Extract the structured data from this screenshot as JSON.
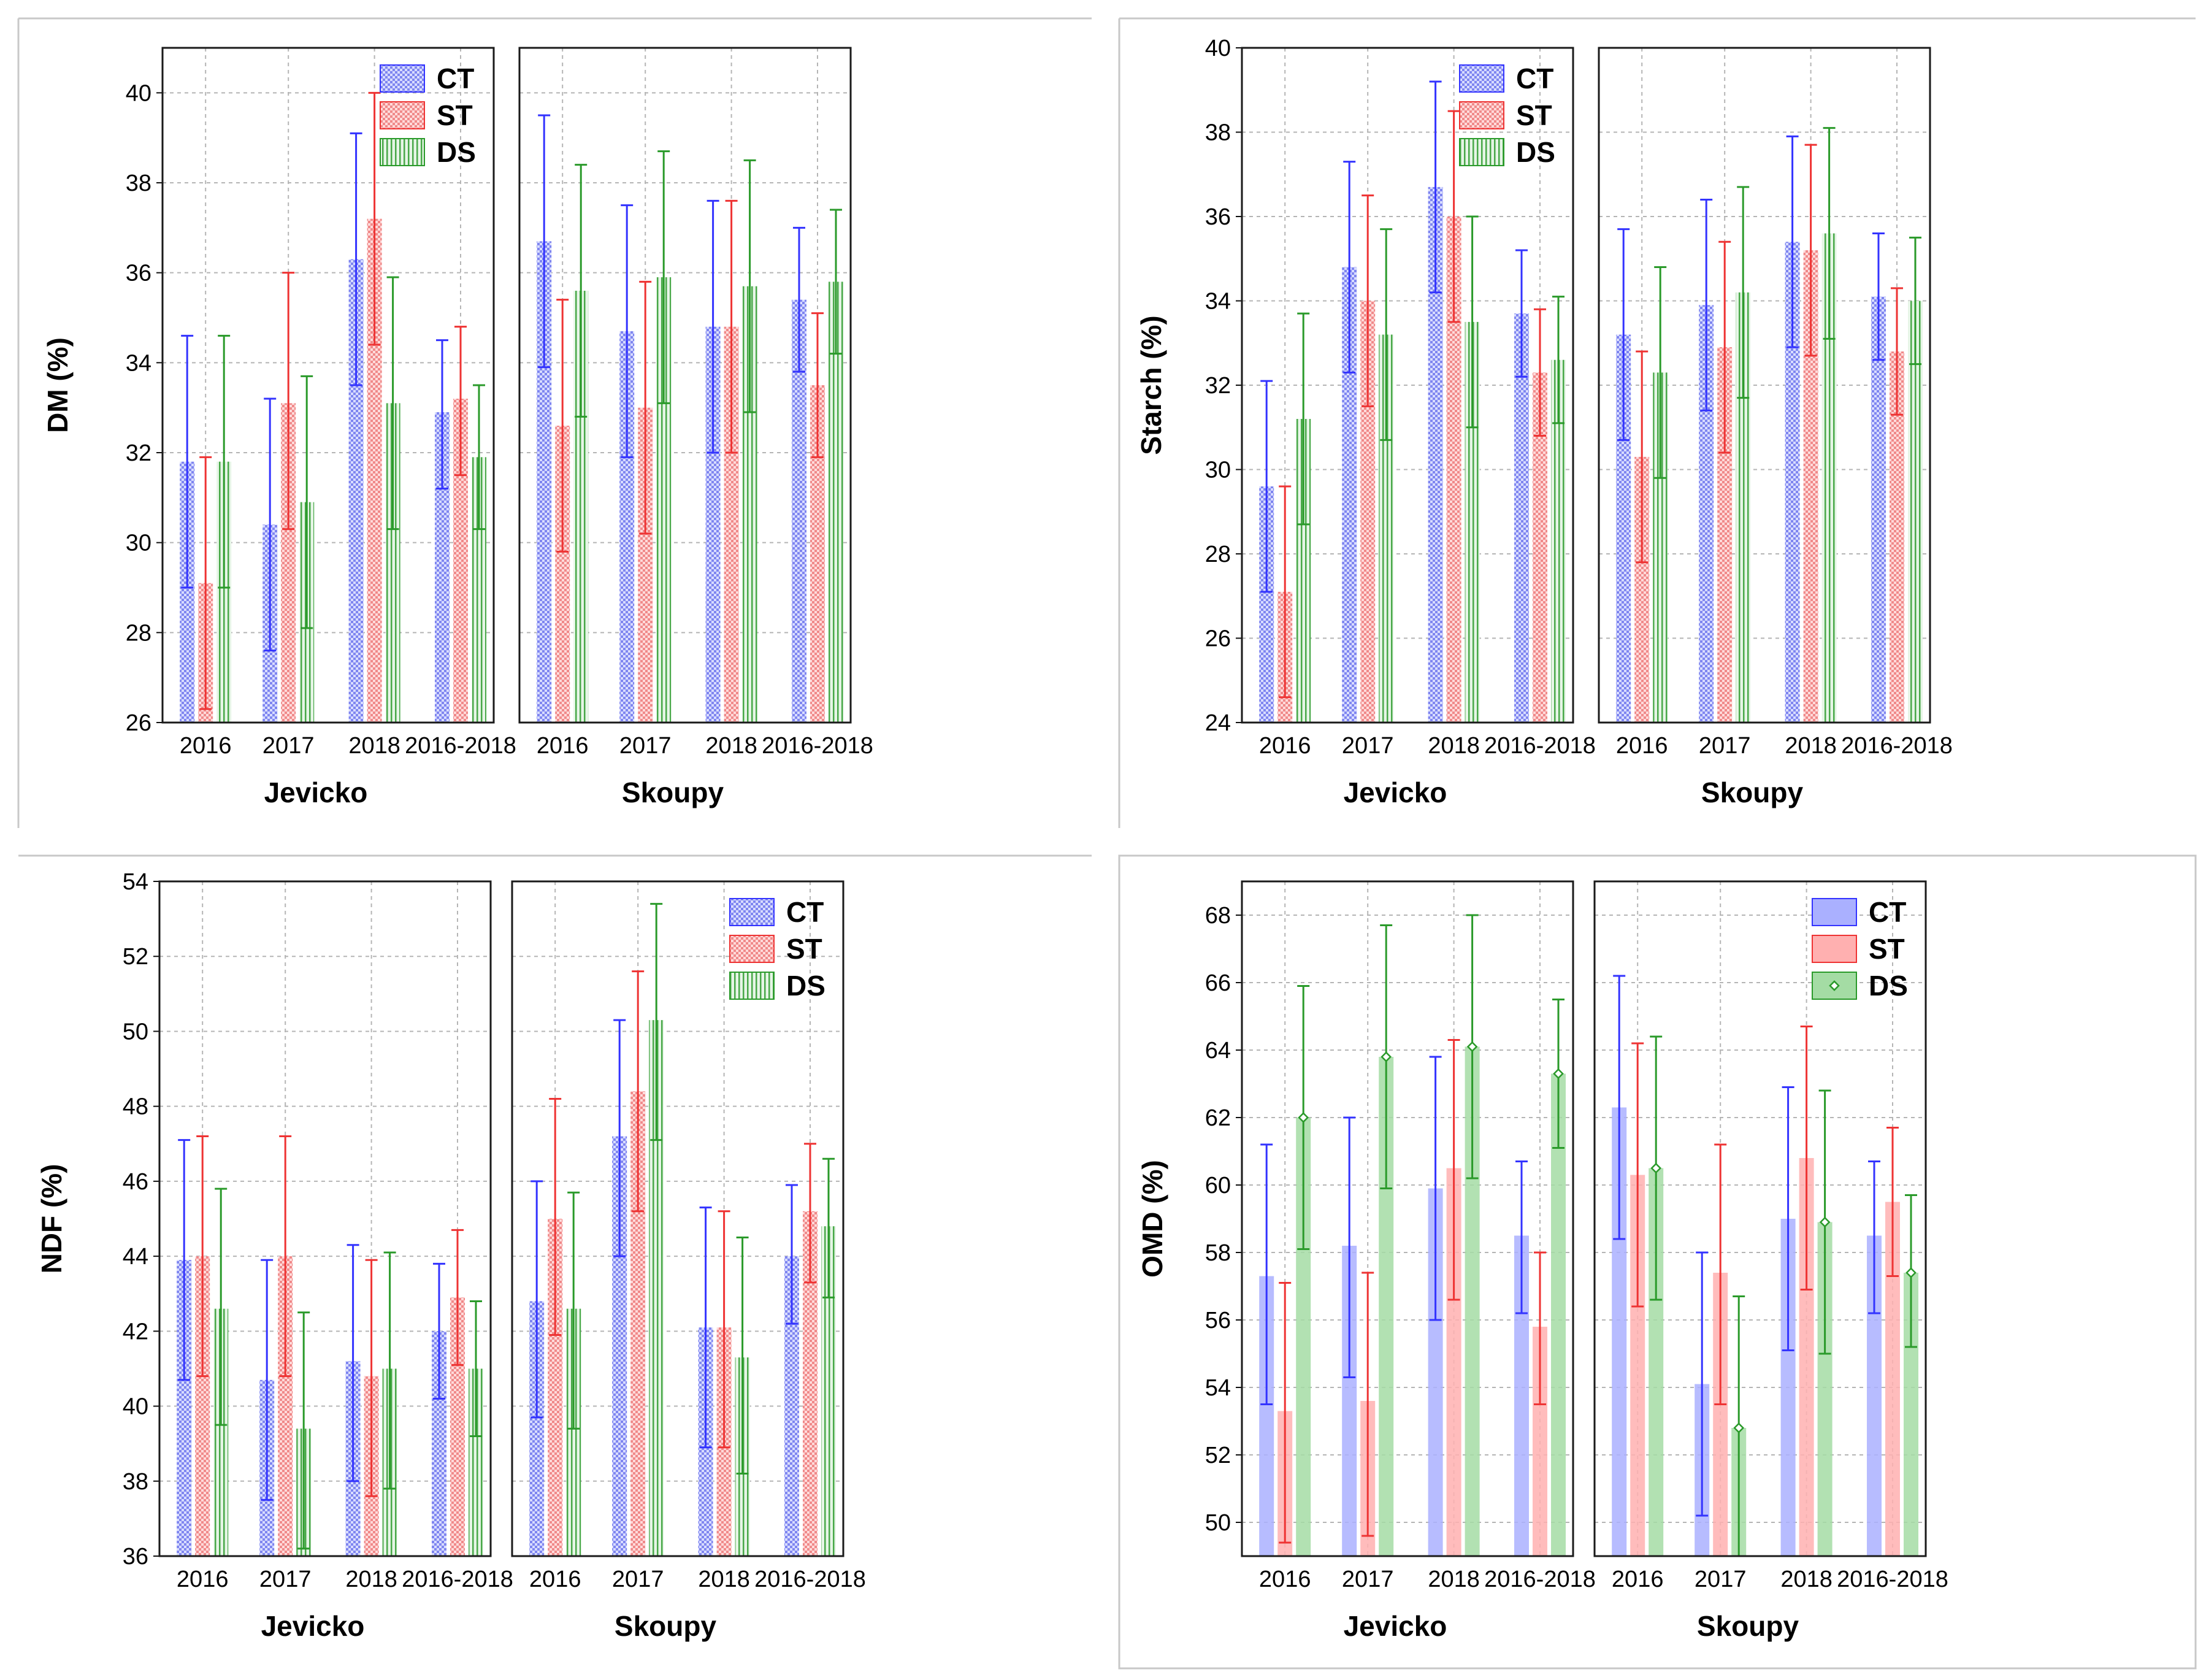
{
  "colors": {
    "CT": "#3333ff",
    "ST": "#ee3333",
    "DS": "#2a9a2a",
    "CT_fill": "#aab0ff",
    "ST_fill": "#ffb0b0",
    "DS_fill": "#a4dca4"
  },
  "chart_data": [
    {
      "type": "bar",
      "ylabel": "DM (%)",
      "ylim": [
        26,
        41
      ],
      "yticks": [
        26,
        28,
        30,
        32,
        34,
        36,
        38,
        40
      ],
      "grid": true,
      "legend_position": "top-right of first panel",
      "legend": [
        "CT",
        "ST",
        "DS"
      ],
      "categories": [
        "2016",
        "2017",
        "2018",
        "2016-2018"
      ],
      "sites": [
        {
          "name": "Jevicko",
          "series": [
            {
              "name": "CT",
              "mean": [
                31.8,
                30.4,
                36.3,
                32.9
              ],
              "upper": [
                34.6,
                33.2,
                39.1,
                34.5
              ],
              "lower": [
                29.0,
                27.6,
                33.5,
                31.2
              ]
            },
            {
              "name": "ST",
              "mean": [
                29.1,
                33.1,
                37.2,
                33.2
              ],
              "upper": [
                31.9,
                36.0,
                40.0,
                34.8
              ],
              "lower": [
                26.3,
                30.3,
                34.4,
                31.5
              ]
            },
            {
              "name": "DS",
              "mean": [
                31.8,
                30.9,
                33.1,
                31.9
              ],
              "upper": [
                34.6,
                33.7,
                35.9,
                33.5
              ],
              "lower": [
                29.0,
                28.1,
                30.3,
                30.3
              ]
            }
          ]
        },
        {
          "name": "Skoupy",
          "series": [
            {
              "name": "CT",
              "mean": [
                36.7,
                34.7,
                34.8,
                35.4
              ],
              "upper": [
                39.5,
                37.5,
                37.6,
                37.0
              ],
              "lower": [
                33.9,
                31.9,
                32.0,
                33.8
              ]
            },
            {
              "name": "ST",
              "mean": [
                32.6,
                33.0,
                34.8,
                33.5
              ],
              "upper": [
                35.4,
                35.8,
                37.6,
                35.1
              ],
              "lower": [
                29.8,
                30.2,
                32.0,
                31.9
              ]
            },
            {
              "name": "DS",
              "mean": [
                35.6,
                35.9,
                35.7,
                35.8
              ],
              "upper": [
                38.4,
                38.7,
                38.5,
                37.4
              ],
              "lower": [
                32.8,
                33.1,
                32.9,
                34.2
              ]
            }
          ]
        }
      ]
    },
    {
      "type": "bar",
      "ylabel": "Starch (%)",
      "ylim": [
        24,
        40
      ],
      "yticks": [
        24,
        26,
        28,
        30,
        32,
        34,
        36,
        38,
        40
      ],
      "grid": true,
      "legend_position": "top-right of first panel",
      "legend": [
        "CT",
        "ST",
        "DS"
      ],
      "categories": [
        "2016",
        "2017",
        "2018",
        "2016-2018"
      ],
      "sites": [
        {
          "name": "Jevicko",
          "series": [
            {
              "name": "CT",
              "mean": [
                29.6,
                34.8,
                36.7,
                33.7
              ],
              "upper": [
                32.1,
                37.3,
                39.2,
                35.2
              ],
              "lower": [
                27.1,
                32.3,
                34.2,
                32.2
              ]
            },
            {
              "name": "ST",
              "mean": [
                27.1,
                34.0,
                36.0,
                32.3
              ],
              "upper": [
                29.6,
                36.5,
                38.5,
                33.8
              ],
              "lower": [
                24.6,
                31.5,
                33.5,
                30.8
              ]
            },
            {
              "name": "DS",
              "mean": [
                31.2,
                33.2,
                33.5,
                32.6
              ],
              "upper": [
                33.7,
                35.7,
                36.0,
                34.1
              ],
              "lower": [
                28.7,
                30.7,
                31.0,
                31.1
              ]
            }
          ]
        },
        {
          "name": "Skoupy",
          "series": [
            {
              "name": "CT",
              "mean": [
                33.2,
                33.9,
                35.4,
                34.1
              ],
              "upper": [
                35.7,
                36.4,
                37.9,
                35.6
              ],
              "lower": [
                30.7,
                31.4,
                32.9,
                32.6
              ]
            },
            {
              "name": "ST",
              "mean": [
                30.3,
                32.9,
                35.2,
                32.8
              ],
              "upper": [
                32.8,
                35.4,
                37.7,
                34.3
              ],
              "lower": [
                27.8,
                30.4,
                32.7,
                31.3
              ]
            },
            {
              "name": "DS",
              "mean": [
                32.3,
                34.2,
                35.6,
                34.0
              ],
              "upper": [
                34.8,
                36.7,
                38.1,
                35.5
              ],
              "lower": [
                29.8,
                31.7,
                33.1,
                32.5
              ]
            }
          ]
        }
      ]
    },
    {
      "type": "bar",
      "ylabel": "NDF (%)",
      "ylim": [
        36,
        54
      ],
      "yticks": [
        36,
        38,
        40,
        42,
        44,
        46,
        48,
        50,
        52,
        54
      ],
      "grid": true,
      "legend_position": "top-right of second panel",
      "legend": [
        "CT",
        "ST",
        "DS"
      ],
      "categories": [
        "2016",
        "2017",
        "2018",
        "2016-2018"
      ],
      "sites": [
        {
          "name": "Jevicko",
          "series": [
            {
              "name": "CT",
              "mean": [
                43.9,
                40.7,
                41.2,
                42.0
              ],
              "upper": [
                47.1,
                43.9,
                44.3,
                43.8
              ],
              "lower": [
                40.7,
                37.5,
                38.0,
                40.2
              ]
            },
            {
              "name": "ST",
              "mean": [
                44.0,
                44.0,
                40.8,
                42.9
              ],
              "upper": [
                47.2,
                47.2,
                43.9,
                44.7
              ],
              "lower": [
                40.8,
                40.8,
                37.6,
                41.1
              ]
            },
            {
              "name": "DS",
              "mean": [
                42.6,
                39.4,
                41.0,
                41.0
              ],
              "upper": [
                45.8,
                42.5,
                44.1,
                42.8
              ],
              "lower": [
                39.5,
                36.2,
                37.8,
                39.2
              ]
            }
          ]
        },
        {
          "name": "Skoupy",
          "series": [
            {
              "name": "CT",
              "mean": [
                42.8,
                47.2,
                42.1,
                44.0
              ],
              "upper": [
                46.0,
                50.3,
                45.3,
                45.9
              ],
              "lower": [
                39.7,
                44.0,
                38.9,
                42.2
              ]
            },
            {
              "name": "ST",
              "mean": [
                45.0,
                48.4,
                42.1,
                45.2
              ],
              "upper": [
                48.2,
                51.6,
                45.2,
                47.0
              ],
              "lower": [
                41.9,
                45.2,
                38.9,
                43.3
              ]
            },
            {
              "name": "DS",
              "mean": [
                42.6,
                50.3,
                41.3,
                44.8
              ],
              "upper": [
                45.7,
                53.4,
                44.5,
                46.6
              ],
              "lower": [
                39.4,
                47.1,
                38.2,
                42.9
              ]
            }
          ]
        }
      ]
    },
    {
      "type": "bar",
      "ylabel": "OMD (%)",
      "ylim": [
        49,
        69
      ],
      "yticks": [
        50,
        52,
        54,
        56,
        58,
        60,
        62,
        64,
        66,
        68
      ],
      "grid": true,
      "legend_position": "top-right of second panel",
      "legend": [
        "CT",
        "ST",
        "DS"
      ],
      "categories": [
        "2016",
        "2017",
        "2018",
        "2016-2018"
      ],
      "sites": [
        {
          "name": "Jevicko",
          "series": [
            {
              "name": "CT",
              "mean": [
                57.3,
                58.2,
                59.9,
                58.5
              ],
              "upper": [
                61.2,
                62.0,
                63.8,
                60.7
              ],
              "lower": [
                53.5,
                54.3,
                56.0,
                56.2
              ]
            },
            {
              "name": "ST",
              "mean": [
                53.3,
                53.6,
                60.5,
                55.8
              ],
              "upper": [
                57.1,
                57.4,
                64.3,
                58.0
              ],
              "lower": [
                49.4,
                49.6,
                56.6,
                53.5
              ]
            },
            {
              "name": "DS",
              "mean": [
                62.0,
                63.8,
                64.1,
                63.3
              ],
              "upper": [
                65.9,
                67.7,
                68.0,
                65.5
              ],
              "lower": [
                58.1,
                59.9,
                60.2,
                61.1
              ]
            }
          ]
        },
        {
          "name": "Skoupy",
          "series": [
            {
              "name": "CT",
              "mean": [
                62.3,
                54.1,
                59.0,
                58.5
              ],
              "upper": [
                66.2,
                58.0,
                62.9,
                60.7
              ],
              "lower": [
                58.4,
                50.2,
                55.1,
                56.2
              ]
            },
            {
              "name": "ST",
              "mean": [
                60.3,
                57.4,
                60.8,
                59.5
              ],
              "upper": [
                64.2,
                61.2,
                64.7,
                61.7
              ],
              "lower": [
                56.4,
                53.5,
                56.9,
                57.3
              ]
            },
            {
              "name": "DS",
              "mean": [
                60.5,
                52.8,
                58.9,
                57.4
              ],
              "upper": [
                64.4,
                56.7,
                62.8,
                59.7
              ],
              "lower": [
                56.6,
                48.9,
                55.0,
                55.2
              ]
            }
          ]
        }
      ]
    }
  ]
}
